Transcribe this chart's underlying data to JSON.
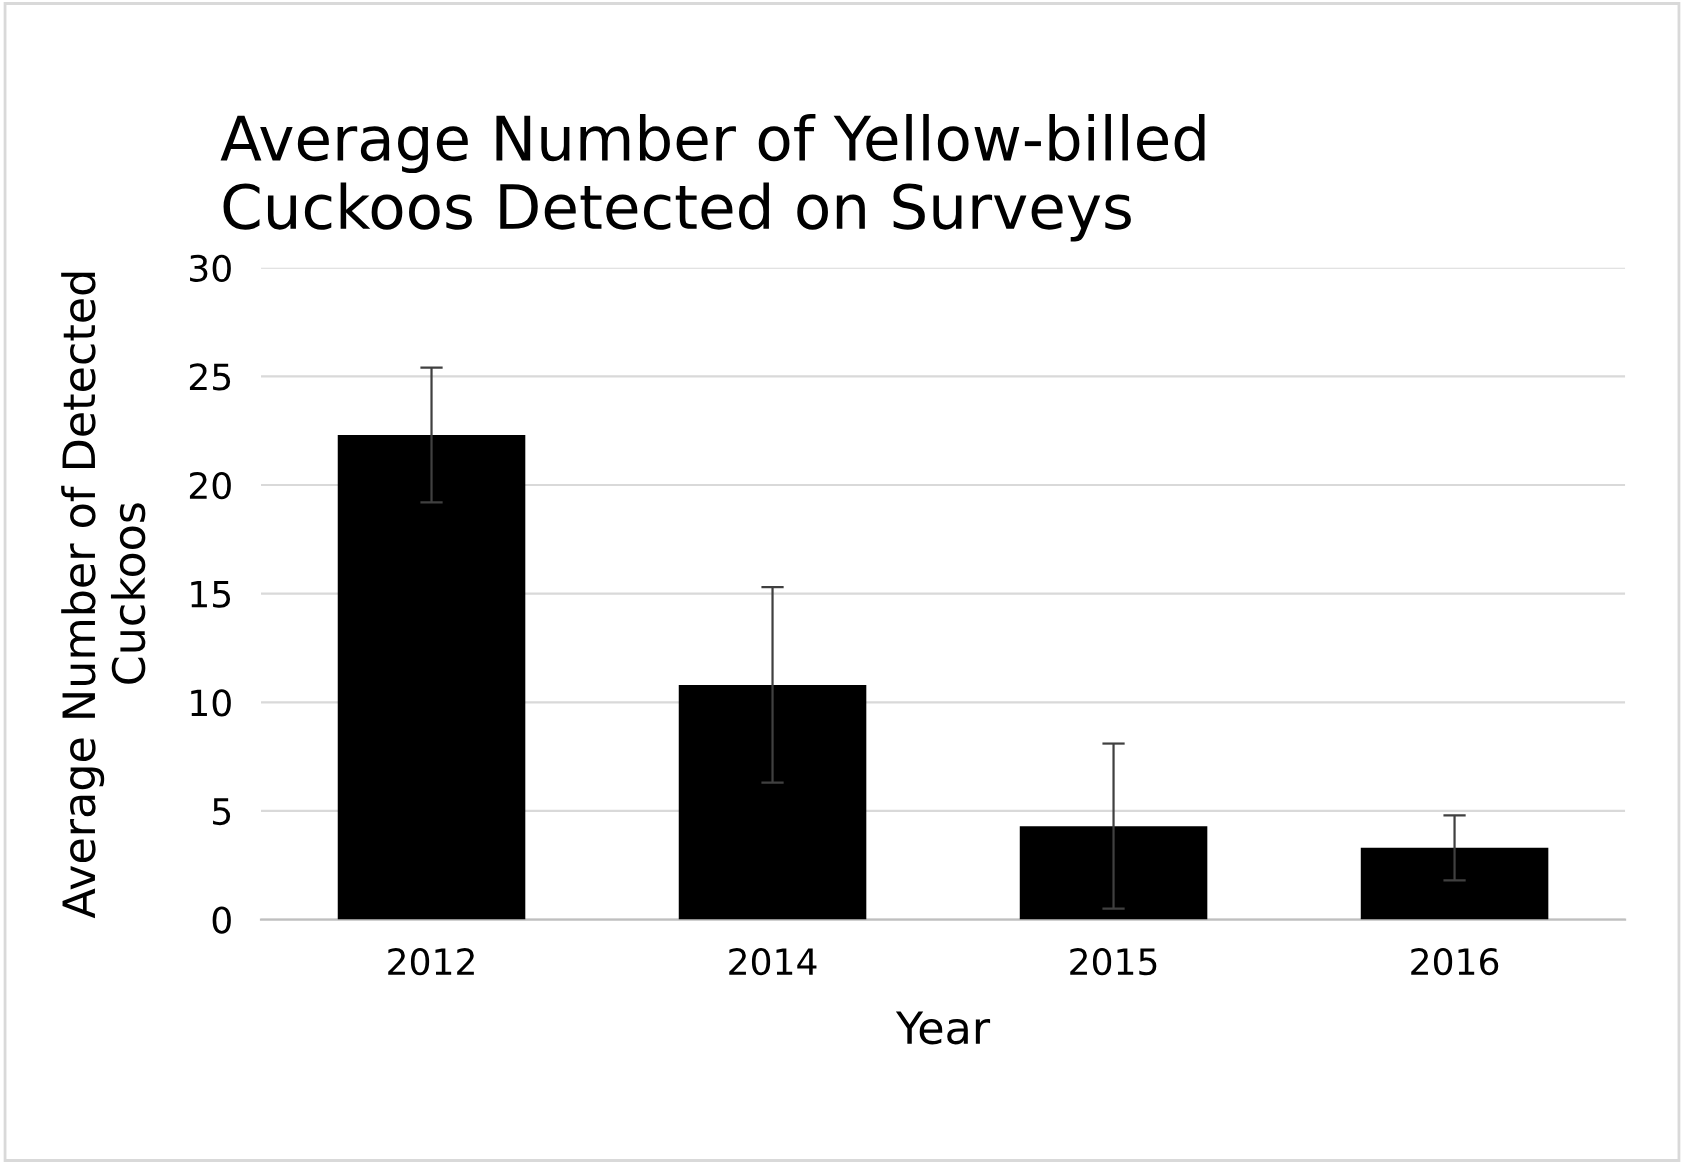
{
  "chart_data": {
    "type": "bar",
    "title": "Average Number of Yellow-billed\nCuckoos Detected on Surveys",
    "xlabel": "Year",
    "ylabel": "Average Number of Detected\nCuckoos",
    "categories": [
      "2012",
      "2014",
      "2015",
      "2016"
    ],
    "values": [
      22.3,
      10.8,
      4.3,
      3.3
    ],
    "errors": [
      3.1,
      4.5,
      3.8,
      1.5
    ],
    "color": "#000000",
    "ylim": [
      0,
      30
    ],
    "yticks": [
      0,
      5,
      10,
      15,
      20,
      25,
      30
    ],
    "grid": "y",
    "legend": false
  }
}
